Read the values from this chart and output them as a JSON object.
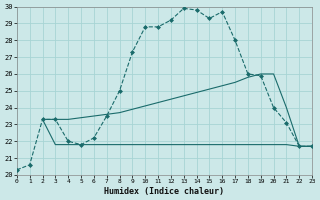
{
  "xlabel": "Humidex (Indice chaleur)",
  "background_color": "#cce8e8",
  "grid_color": "#a8d4d4",
  "line_color": "#1a6b6b",
  "xlim": [
    0,
    23
  ],
  "ylim": [
    20,
    30
  ],
  "xticks": [
    0,
    1,
    2,
    3,
    4,
    5,
    6,
    7,
    8,
    9,
    10,
    11,
    12,
    13,
    14,
    15,
    16,
    17,
    18,
    19,
    20,
    21,
    22,
    23
  ],
  "yticks": [
    20,
    21,
    22,
    23,
    24,
    25,
    26,
    27,
    28,
    29,
    30
  ],
  "curve1_x": [
    0,
    1,
    2,
    3,
    4,
    5,
    6,
    7,
    8,
    9,
    10,
    11,
    12,
    13,
    14,
    15,
    16,
    17,
    18,
    19,
    20,
    21,
    22,
    23
  ],
  "curve1_y": [
    20.3,
    20.6,
    23.3,
    23.3,
    22.0,
    21.8,
    22.2,
    23.5,
    25.0,
    27.3,
    28.8,
    28.8,
    29.2,
    29.9,
    29.8,
    29.3,
    29.7,
    28.0,
    26.0,
    25.9,
    24.0,
    23.1,
    21.7,
    21.7
  ],
  "curve2_x": [
    2,
    3,
    4,
    5,
    6,
    7,
    8,
    9,
    10,
    11,
    12,
    13,
    14,
    15,
    16,
    17,
    18,
    19,
    20,
    21,
    22,
    23
  ],
  "curve2_y": [
    23.3,
    23.3,
    23.3,
    23.4,
    23.5,
    23.6,
    23.7,
    23.9,
    24.1,
    24.3,
    24.5,
    24.7,
    24.9,
    25.1,
    25.3,
    25.5,
    25.8,
    26.0,
    26.0,
    24.0,
    21.7,
    21.7
  ],
  "curve3_x": [
    2,
    3,
    4,
    5,
    6,
    7,
    8,
    9,
    10,
    11,
    12,
    13,
    14,
    15,
    16,
    17,
    18,
    19,
    20,
    21,
    22,
    23
  ],
  "curve3_y": [
    23.3,
    21.8,
    21.8,
    21.8,
    21.8,
    21.8,
    21.8,
    21.8,
    21.8,
    21.8,
    21.8,
    21.8,
    21.8,
    21.8,
    21.8,
    21.8,
    21.8,
    21.8,
    21.8,
    21.8,
    21.7,
    21.7
  ]
}
